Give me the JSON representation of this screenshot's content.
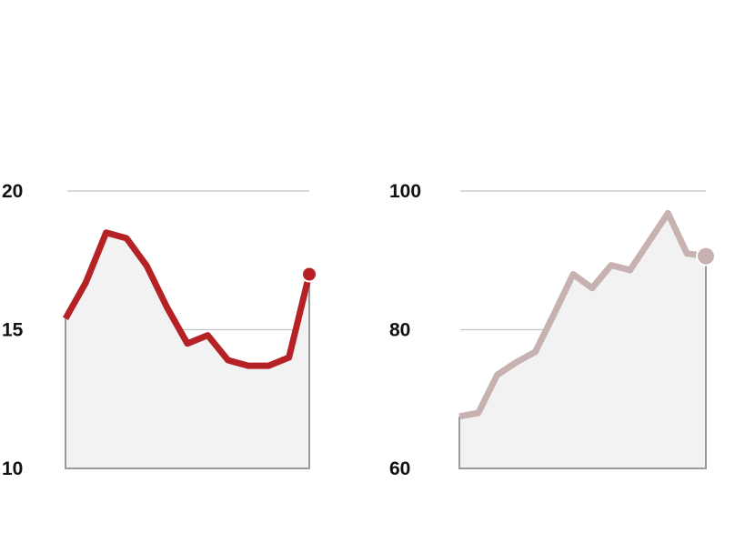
{
  "chart_data": [
    {
      "type": "area",
      "title": "",
      "xlabel": "",
      "ylabel": "",
      "ylim": [
        10,
        20
      ],
      "yticks": [
        "10",
        "15",
        "20"
      ],
      "grid": true,
      "color": "#b52226",
      "end_marker": true,
      "series": [
        {
          "values": [
            15.4,
            16.7,
            18.5,
            18.3,
            17.3,
            15.8,
            14.5,
            14.8,
            13.9,
            13.7,
            13.7,
            14.0,
            17.0
          ]
        }
      ]
    },
    {
      "type": "area",
      "title": "",
      "xlabel": "",
      "ylabel": "",
      "ylim": [
        60,
        100
      ],
      "yticks": [
        "60",
        "80",
        "100"
      ],
      "grid": true,
      "color": "#c8b2b1",
      "end_marker": true,
      "series": [
        {
          "values": [
            67.5,
            68.0,
            73.5,
            75.3,
            76.8,
            82.3,
            88.0,
            86.0,
            89.3,
            88.6,
            92.7,
            96.8,
            91.0,
            90.6
          ]
        }
      ]
    }
  ]
}
